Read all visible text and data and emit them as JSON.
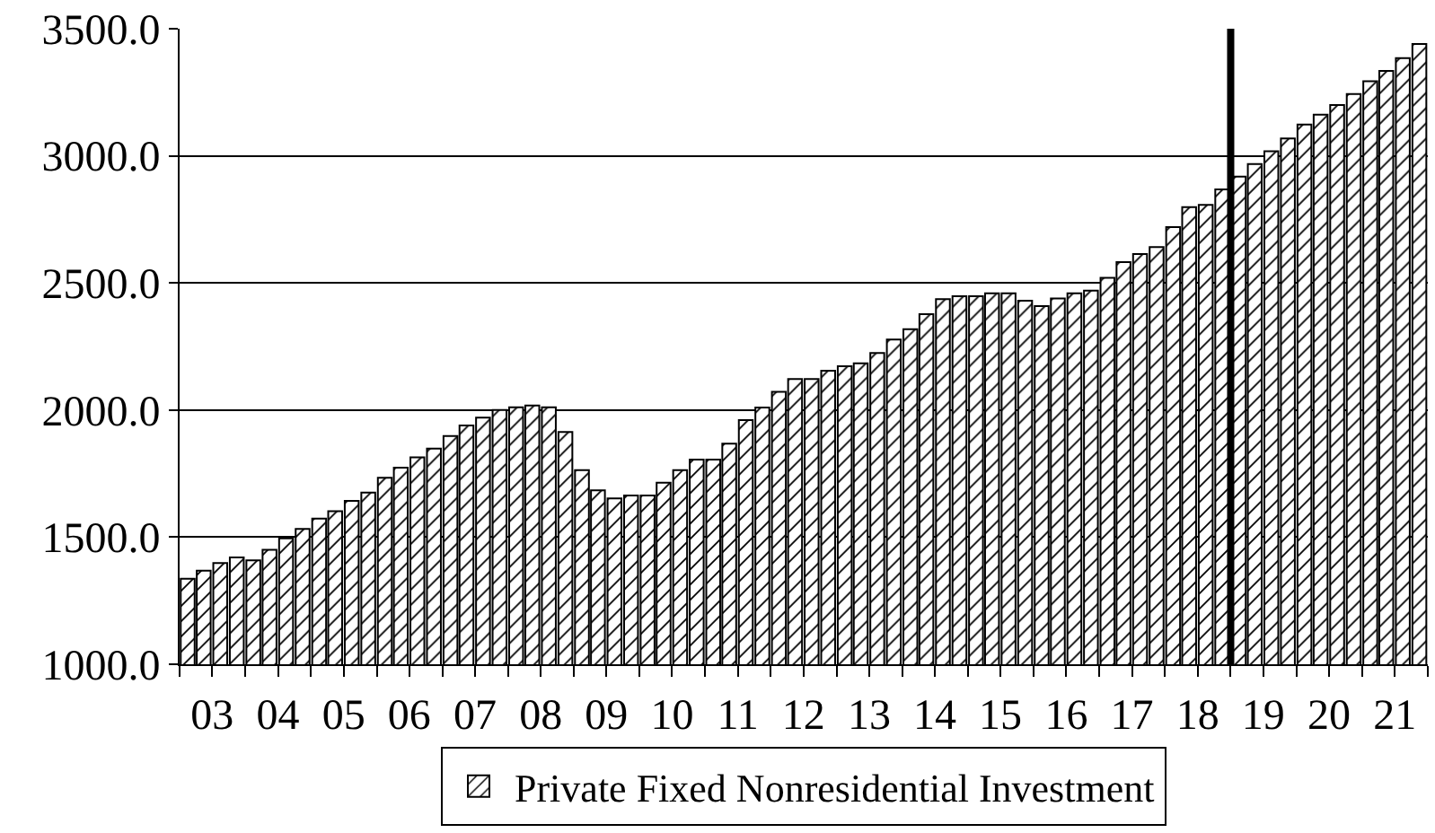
{
  "chart_data": {
    "type": "bar",
    "x": [
      "2003-02-15",
      "2003-05-15",
      "2003-08-15",
      "2003-11-15",
      "2004-02-15",
      "2004-05-15",
      "2004-08-15",
      "2004-11-15",
      "2005-02-15",
      "2005-05-15",
      "2005-08-15",
      "2005-11-15",
      "2006-02-15",
      "2006-05-15",
      "2006-08-15",
      "2006-11-15",
      "2007-02-15",
      "2007-05-15",
      "2007-08-15",
      "2007-11-15",
      "2008-02-15",
      "2008-05-15",
      "2008-08-15",
      "2008-11-15",
      "2009-02-15",
      "2009-05-15",
      "2009-08-15",
      "2009-11-15",
      "2010-02-15",
      "2010-05-15",
      "2010-08-15",
      "2010-11-15",
      "2011-02-15",
      "2011-05-15",
      "2011-08-15",
      "2011-11-15",
      "2012-02-15",
      "2012-05-15",
      "2012-08-15",
      "2012-11-15",
      "2013-02-15",
      "2013-05-15",
      "2013-08-15",
      "2013-11-15",
      "2014-02-15",
      "2014-05-15",
      "2014-08-15",
      "2014-11-15",
      "2015-02-15",
      "2015-05-15",
      "2015-08-15",
      "2015-11-15",
      "2016-02-15",
      "2016-05-15",
      "2016-08-15",
      "2016-11-15",
      "2017-02-15",
      "2017-05-15",
      "2017-08-15",
      "2017-11-15",
      "2018-02-15",
      "2018-05-15",
      "2018-08-15",
      "2018-11-15",
      "2019-02-15",
      "2019-05-15",
      "2019-08-15",
      "2019-11-15",
      "2020-02-15",
      "2020-05-15",
      "2020-08-15",
      "2020-11-15",
      "2021-02-15",
      "2021-05-15",
      "2021-08-15",
      "2021-11-15"
    ],
    "series": [
      {
        "name": "Private Fixed Nonresidential Investment",
        "color": "#000000",
        "values": [
          1336,
          1368,
          1398,
          1420,
          1409,
          1450,
          1495,
          1532,
          1573,
          1602,
          1643,
          1675,
          1734,
          1773,
          1814,
          1848,
          1898,
          1939,
          1970,
          2000,
          2011,
          2018,
          2011,
          1914,
          1764,
          1684,
          1652,
          1664,
          1664,
          1714,
          1764,
          1805,
          1805,
          1868,
          1960,
          2010,
          2072,
          2122,
          2122,
          2155,
          2172,
          2184,
          2224,
          2277,
          2318,
          2377,
          2436,
          2448,
          2448,
          2459,
          2459,
          2430,
          2409,
          2439,
          2459,
          2470,
          2520,
          2582,
          2614,
          2641,
          2720,
          2798,
          2807,
          2868,
          2918,
          2968,
          3018,
          3068,
          3123,
          3162,
          3200,
          3243,
          3293,
          3334,
          3384,
          3440
        ]
      }
    ],
    "xlim": [
      "2003-01-01",
      "2022-01-01"
    ],
    "xticks": [
      {
        "value": "2003-01-01",
        "label": null
      },
      {
        "value": "2004-01-01",
        "label": null
      },
      {
        "value": "2005-01-01",
        "label": null
      },
      {
        "value": "2006-01-01",
        "label": null
      },
      {
        "value": "2007-01-01",
        "label": null
      },
      {
        "value": "2008-01-01",
        "label": null
      },
      {
        "value": "2009-01-01",
        "label": null
      },
      {
        "value": "2010-01-01",
        "label": null
      },
      {
        "value": "2011-01-01",
        "label": null
      },
      {
        "value": "2012-01-01",
        "label": null
      },
      {
        "value": "2013-01-01",
        "label": null
      },
      {
        "value": "2014-01-01",
        "label": null
      },
      {
        "value": "2015-01-01",
        "label": null
      },
      {
        "value": "2016-01-01",
        "label": null
      },
      {
        "value": "2017-01-01",
        "label": null
      },
      {
        "value": "2018-01-01",
        "label": null
      },
      {
        "value": "2019-01-01",
        "label": null
      },
      {
        "value": "2020-01-01",
        "label": null
      },
      {
        "value": "2021-01-01",
        "label": null
      },
      {
        "value": "2022-01-01",
        "label": null
      },
      {
        "value": "2003-07-01",
        "label": "03"
      },
      {
        "value": "2004-07-01",
        "label": "04"
      },
      {
        "value": "2005-07-01",
        "label": "05"
      },
      {
        "value": "2006-07-01",
        "label": "06"
      },
      {
        "value": "2007-07-01",
        "label": "07"
      },
      {
        "value": "2008-07-01",
        "label": "08"
      },
      {
        "value": "2009-07-01",
        "label": "09"
      },
      {
        "value": "2010-07-01",
        "label": "10"
      },
      {
        "value": "2011-07-01",
        "label": "11"
      },
      {
        "value": "2012-07-01",
        "label": "12"
      },
      {
        "value": "2013-07-01",
        "label": "13"
      },
      {
        "value": "2014-07-01",
        "label": "14"
      },
      {
        "value": "2015-07-01",
        "label": "15"
      },
      {
        "value": "2016-07-01",
        "label": "16"
      },
      {
        "value": "2017-07-01",
        "label": "17"
      },
      {
        "value": "2018-07-01",
        "label": "18"
      },
      {
        "value": "2019-07-01",
        "label": "19"
      },
      {
        "value": "2020-07-01",
        "label": "20"
      },
      {
        "value": "2021-07-01",
        "label": "21"
      }
    ],
    "ylim": [
      1000,
      3500
    ],
    "yticks": [
      {
        "value": 1000,
        "label": "1000.0"
      },
      {
        "value": 1500,
        "label": "1500.0"
      },
      {
        "value": 2000,
        "label": "2000.0"
      },
      {
        "value": 2500,
        "label": "2500.0"
      },
      {
        "value": 3000,
        "label": "3000.0"
      },
      {
        "value": 3500,
        "label": "3500.0"
      }
    ],
    "ref_lines": [
      {
        "axis": "x",
        "value": "2019-01-01",
        "color": "#000000"
      }
    ],
    "grid": "y",
    "legend": "bottom"
  }
}
